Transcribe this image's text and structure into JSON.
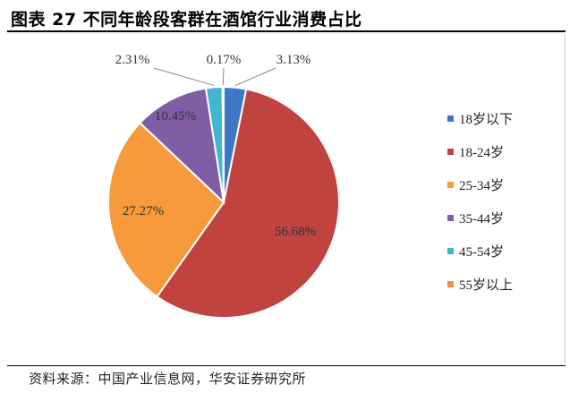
{
  "title": "图表 27  不同年龄段客群在酒馆行业消费占比",
  "source": "资料来源：中国产业信息网，华安证券研究所",
  "chart_data": {
    "type": "pie",
    "legend_position": "right",
    "slices": [
      {
        "label": "18岁以下",
        "value": 3.13,
        "value_label": "3.13%",
        "color": "#3d78c4"
      },
      {
        "label": "18-24岁",
        "value": 56.68,
        "value_label": "56.68%",
        "color": "#c0433f"
      },
      {
        "label": "25-34岁",
        "value": 27.27,
        "value_label": "27.27%",
        "color": "#f79a3b"
      },
      {
        "label": "35-44岁",
        "value": 10.45,
        "value_label": "10.45%",
        "color": "#7f5ea6"
      },
      {
        "label": "45-54岁",
        "value": 2.31,
        "value_label": "2.31%",
        "color": "#43b6cf"
      },
      {
        "label": "55岁以上",
        "value": 0.17,
        "value_label": "0.17%",
        "color": "#f28f3c"
      }
    ]
  }
}
